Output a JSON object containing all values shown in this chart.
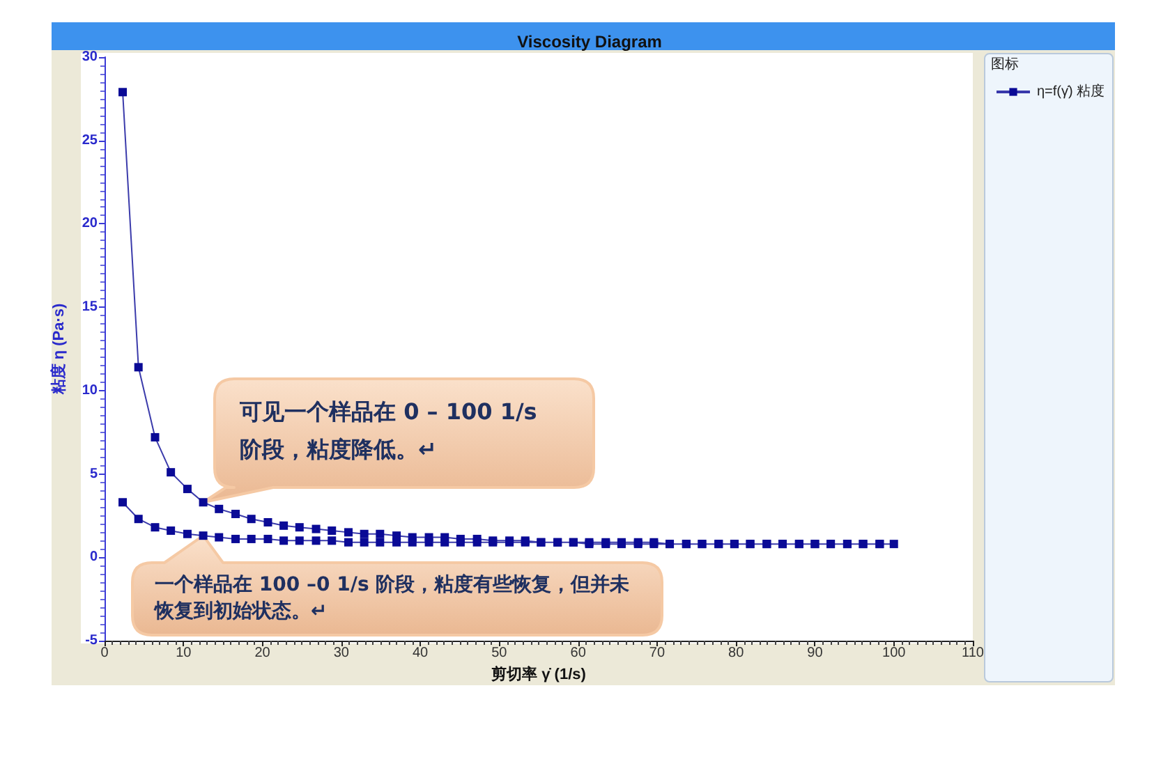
{
  "chart_data": {
    "type": "line",
    "title": "Viscosity Diagram",
    "xlabel": "剪切率 γ̇ (1/s)",
    "ylabel": "粘度 η (Pa·s)",
    "legend_title": "图标",
    "legend": "top right",
    "marker": "square",
    "xlim": [
      0,
      110
    ],
    "xticks": [
      0,
      10,
      20,
      30,
      40,
      50,
      60,
      70,
      80,
      90,
      100,
      110
    ],
    "ylim": [
      -5,
      30
    ],
    "yticks": [
      -5,
      0,
      5,
      10,
      15,
      20,
      25,
      30
    ],
    "annotations": [
      {
        "text": "可见一个样品在 0 – 100 1/s 阶段，粘度降低。↵",
        "x": 12.5,
        "y": 3.3
      },
      {
        "text": "一个样品在 100 –0 1/s 阶段，粘度有些恢复，但并未恢复到初始状态。↵",
        "x": 12.5,
        "y": 1.3
      }
    ],
    "series": [
      {
        "name": "η=f(γ̇) 粘度",
        "color": "#0a0a96",
        "x": [
          2.3,
          4.3,
          6.4,
          8.4,
          10.5,
          12.5,
          14.5,
          16.6,
          18.6,
          20.7,
          22.7,
          24.7,
          26.8,
          28.8,
          30.9,
          32.9,
          34.9,
          37,
          39,
          41.1,
          43.1,
          45.1,
          47.2,
          49.2,
          51.3,
          53.3,
          55.3,
          57.4,
          59.4,
          61.4,
          63.5,
          65.5,
          67.6,
          69.6,
          71.6,
          73.7,
          75.7,
          77.8,
          79.8,
          81.8,
          83.9,
          85.9,
          88,
          90,
          92,
          94.1,
          96.1,
          98.2,
          100,
          98.2,
          96.1,
          94.1,
          92,
          90,
          88,
          85.9,
          83.9,
          81.8,
          79.8,
          77.8,
          75.7,
          73.7,
          71.6,
          69.6,
          67.6,
          65.5,
          63.5,
          61.4,
          59.4,
          57.4,
          55.3,
          53.3,
          51.3,
          49.2,
          47.2,
          45.1,
          43.1,
          41.1,
          39,
          37,
          34.9,
          32.9,
          30.9,
          28.8,
          26.8,
          24.7,
          22.7,
          20.7,
          18.6,
          16.6,
          14.5,
          12.5,
          10.5,
          8.4,
          6.4,
          4.3,
          2.3
        ],
        "values": [
          27.9,
          11.4,
          7.2,
          5.1,
          4.1,
          3.3,
          2.9,
          2.6,
          2.3,
          2.1,
          1.9,
          1.8,
          1.7,
          1.6,
          1.5,
          1.4,
          1.4,
          1.3,
          1.2,
          1.2,
          1.2,
          1.1,
          1.1,
          1.0,
          1.0,
          1.0,
          0.9,
          0.9,
          0.9,
          0.9,
          0.9,
          0.9,
          0.9,
          0.9,
          0.8,
          0.8,
          0.8,
          0.8,
          0.8,
          0.8,
          0.8,
          0.8,
          0.8,
          0.8,
          0.8,
          0.8,
          0.8,
          0.8,
          0.8,
          0.8,
          0.8,
          0.8,
          0.8,
          0.8,
          0.8,
          0.8,
          0.8,
          0.8,
          0.8,
          0.8,
          0.8,
          0.8,
          0.8,
          0.8,
          0.8,
          0.8,
          0.8,
          0.8,
          0.9,
          0.9,
          0.9,
          0.9,
          0.9,
          0.9,
          0.9,
          0.9,
          0.9,
          0.9,
          0.9,
          0.9,
          0.9,
          0.9,
          0.9,
          1.0,
          1.0,
          1.0,
          1.0,
          1.1,
          1.1,
          1.1,
          1.2,
          1.3,
          1.4,
          1.6,
          1.8,
          2.3,
          3.3
        ]
      }
    ]
  }
}
